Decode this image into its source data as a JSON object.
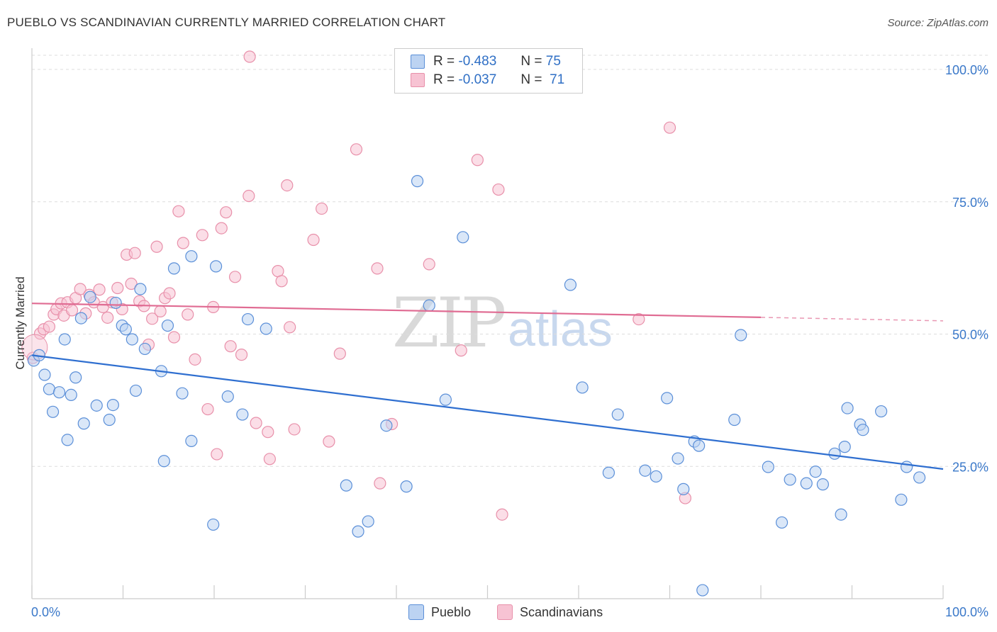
{
  "title": "PUEBLO VS SCANDINAVIAN CURRENTLY MARRIED CORRELATION CHART",
  "source": "Source: ZipAtlas.com",
  "watermark": {
    "zip": "ZIP",
    "atlas": "atlas"
  },
  "legend": {
    "r_label": "R =",
    "n_label": "N =",
    "items": [
      {
        "r": "-0.483",
        "n": "75"
      },
      {
        "r": "-0.037",
        "n": "71"
      }
    ]
  },
  "bottom_legend": [
    "Pueblo",
    "Scandinavians"
  ],
  "chart_data": {
    "type": "scatter",
    "title": "PUEBLO VS SCANDINAVIAN CURRENTLY MARRIED CORRELATION CHART",
    "xlabel": "",
    "ylabel": "Currently Married",
    "xlim": [
      0,
      100
    ],
    "ylim": [
      0,
      101
    ],
    "x_tick_labels": [
      "0.0%",
      "100.0%"
    ],
    "y_ticks": [
      25,
      50,
      75,
      100
    ],
    "y_tick_labels": [
      "25.0%",
      "50.0%",
      "75.0%",
      "100.0%"
    ],
    "grid": "horizontal dashed",
    "colors": {
      "pueblo": "#5b8fd8",
      "pueblo_fill": "#bcd3f2",
      "pueblo_line": "#2f6fd0",
      "scand": "#e890aa",
      "scand_fill": "#f7c3d3",
      "scand_line": "#e06c93"
    },
    "series": [
      {
        "name": "Pueblo",
        "trend": {
          "x0": 0,
          "y0": 46.0,
          "x1": 100,
          "y1": 24.5
        },
        "points": [
          [
            0.2,
            45
          ],
          [
            0.8,
            46
          ],
          [
            1.4,
            42.3
          ],
          [
            1.9,
            39.6
          ],
          [
            2.3,
            35.3
          ],
          [
            3,
            39
          ],
          [
            3.6,
            49
          ],
          [
            3.9,
            30
          ],
          [
            4.3,
            38.5
          ],
          [
            4.8,
            41.8
          ],
          [
            5.4,
            53
          ],
          [
            5.7,
            33.1
          ],
          [
            6.4,
            57
          ],
          [
            7.1,
            36.5
          ],
          [
            8.5,
            33.8
          ],
          [
            8.9,
            36.6
          ],
          [
            9.2,
            55.9
          ],
          [
            9.9,
            51.6
          ],
          [
            10.3,
            50.9
          ],
          [
            11,
            49
          ],
          [
            11.4,
            39.3
          ],
          [
            11.9,
            58.5
          ],
          [
            12.4,
            47.2
          ],
          [
            14.2,
            43
          ],
          [
            14.5,
            26
          ],
          [
            14.9,
            51.6
          ],
          [
            15.6,
            62.4
          ],
          [
            16.5,
            38.8
          ],
          [
            17.5,
            64.7
          ],
          [
            17.5,
            29.8
          ],
          [
            19.9,
            14
          ],
          [
            20.2,
            62.8
          ],
          [
            21.5,
            38.2
          ],
          [
            23.1,
            34.8
          ],
          [
            23.7,
            52.8
          ],
          [
            25.7,
            51
          ],
          [
            34.5,
            21.4
          ],
          [
            35.8,
            12.7
          ],
          [
            36.9,
            14.6
          ],
          [
            38.9,
            32.7
          ],
          [
            41.1,
            21.2
          ],
          [
            42.3,
            78.9
          ],
          [
            43.6,
            55.4
          ],
          [
            45.4,
            37.6
          ],
          [
            47.3,
            68.3
          ],
          [
            59.1,
            59.3
          ],
          [
            60.4,
            39.9
          ],
          [
            63.3,
            23.8
          ],
          [
            64.3,
            34.8
          ],
          [
            67.3,
            24.2
          ],
          [
            68.5,
            23.1
          ],
          [
            69.7,
            37.9
          ],
          [
            70.9,
            26.5
          ],
          [
            71.5,
            20.7
          ],
          [
            72.7,
            29.7
          ],
          [
            73.2,
            28.9
          ],
          [
            73.6,
            1.6
          ],
          [
            77.1,
            33.8
          ],
          [
            77.8,
            49.8
          ],
          [
            80.8,
            24.9
          ],
          [
            82.3,
            14.4
          ],
          [
            83.2,
            22.5
          ],
          [
            85,
            21.8
          ],
          [
            86,
            24
          ],
          [
            86.8,
            21.6
          ],
          [
            88.1,
            27.4
          ],
          [
            88.8,
            15.9
          ],
          [
            89.2,
            28.7
          ],
          [
            89.5,
            36
          ],
          [
            90.9,
            32.9
          ],
          [
            91.2,
            31.9
          ],
          [
            93.2,
            35.4
          ],
          [
            95.4,
            18.7
          ],
          [
            96,
            24.9
          ],
          [
            97.4,
            22.9
          ]
        ]
      },
      {
        "name": "Scandinavians",
        "trend": {
          "x0": 0,
          "y0": 55.8,
          "x1": 100,
          "y1": 52.5,
          "solid_until_x": 80
        },
        "points": [
          [
            0.1,
            45.5
          ],
          [
            0.9,
            50.1
          ],
          [
            1.3,
            50.9
          ],
          [
            1.9,
            51.4
          ],
          [
            2.4,
            53.7
          ],
          [
            2.7,
            54.7
          ],
          [
            3.2,
            55.8
          ],
          [
            3.5,
            53.5
          ],
          [
            3.9,
            56
          ],
          [
            4.4,
            54.5
          ],
          [
            4.8,
            56.8
          ],
          [
            5.3,
            58.5
          ],
          [
            5.9,
            53.9
          ],
          [
            6.3,
            57.4
          ],
          [
            6.8,
            56
          ],
          [
            7.4,
            58.4
          ],
          [
            7.8,
            55.1
          ],
          [
            8.3,
            53.1
          ],
          [
            8.8,
            56
          ],
          [
            9.4,
            58.7
          ],
          [
            9.9,
            54.7
          ],
          [
            10.4,
            65
          ],
          [
            10.9,
            59.5
          ],
          [
            11.3,
            65.3
          ],
          [
            11.8,
            56.2
          ],
          [
            12.3,
            55.3
          ],
          [
            12.8,
            48
          ],
          [
            13.2,
            52.9
          ],
          [
            13.7,
            66.5
          ],
          [
            14.1,
            54.3
          ],
          [
            14.6,
            56.8
          ],
          [
            15.1,
            57.7
          ],
          [
            15.6,
            49.4
          ],
          [
            16.1,
            73.2
          ],
          [
            16.6,
            67.2
          ],
          [
            17.1,
            53.7
          ],
          [
            17.9,
            45.2
          ],
          [
            18.7,
            68.7
          ],
          [
            19.3,
            35.8
          ],
          [
            19.9,
            55.1
          ],
          [
            20.3,
            27.3
          ],
          [
            20.8,
            70
          ],
          [
            21.3,
            73
          ],
          [
            21.8,
            47.7
          ],
          [
            22.3,
            60.8
          ],
          [
            23,
            46.1
          ],
          [
            23.8,
            76.1
          ],
          [
            24.6,
            33.2
          ],
          [
            25.9,
            31.5
          ],
          [
            26.1,
            26.4
          ],
          [
            27,
            61.9
          ],
          [
            27.4,
            60
          ],
          [
            28,
            78.1
          ],
          [
            28.3,
            51.3
          ],
          [
            28.8,
            32
          ],
          [
            30.9,
            67.8
          ],
          [
            31.8,
            73.7
          ],
          [
            32.6,
            29.7
          ],
          [
            33.8,
            46.3
          ],
          [
            35.6,
            84.9
          ],
          [
            37.9,
            62.4
          ],
          [
            38.2,
            21.8
          ],
          [
            39.5,
            33
          ],
          [
            43.6,
            63.2
          ],
          [
            47.1,
            46.9
          ],
          [
            48.9,
            82.9
          ],
          [
            51.2,
            77.3
          ],
          [
            51.6,
            15.9
          ],
          [
            66.6,
            52.8
          ],
          [
            70,
            89
          ],
          [
            71.7,
            19
          ]
        ],
        "extra_point": [
          23.9,
          100
        ]
      }
    ]
  }
}
